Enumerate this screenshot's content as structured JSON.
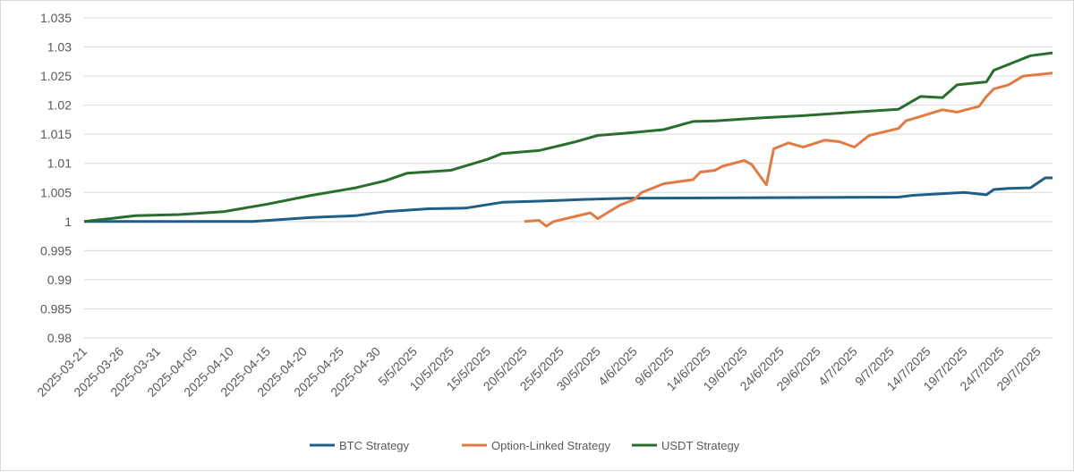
{
  "chart_data": {
    "type": "line",
    "title": "",
    "xlabel": "",
    "ylabel": "",
    "ylim": [
      0.98,
      1.035
    ],
    "y_ticks": [
      "0.98",
      "0.985",
      "0.99",
      "0.995",
      "1",
      "1.005",
      "1.01",
      "1.015",
      "1.02",
      "1.025",
      "1.03",
      "1.035"
    ],
    "x_range": [
      "2025-03-21",
      "2025-07-31"
    ],
    "x_tick_dates": [
      "2025-03-21",
      "2025-03-26",
      "2025-03-31",
      "2025-04-05",
      "2025-04-10",
      "2025-04-15",
      "2025-04-20",
      "2025-04-25",
      "2025-04-30",
      "2025-05-05",
      "2025-05-10",
      "2025-05-15",
      "2025-05-20",
      "2025-05-25",
      "2025-05-30",
      "2025-06-04",
      "2025-06-09",
      "2025-06-14",
      "2025-06-19",
      "2025-06-24",
      "2025-06-29",
      "2025-07-04",
      "2025-07-09",
      "2025-07-14",
      "2025-07-19",
      "2025-07-24",
      "2025-07-29"
    ],
    "x_tick_labels": [
      "2025-03-21",
      "2025-03-26",
      "2025-03-31",
      "2025-04-05",
      "2025-04-10",
      "2025-04-15",
      "2025-04-20",
      "2025-04-25",
      "2025-04-30",
      "5/5/2025",
      "10/5/2025",
      "15/5/2025",
      "20/5/2025",
      "25/5/2025",
      "30/5/2025",
      "4/6/2025",
      "9/6/2025",
      "14/6/2025",
      "19/6/2025",
      "24/6/2025",
      "29/6/2025",
      "4/7/2025",
      "9/7/2025",
      "14/7/2025",
      "19/7/2025",
      "24/7/2025",
      "29/7/2025"
    ],
    "grid": "horizontal",
    "legend_position": "bottom",
    "series": [
      {
        "name": "BTC Strategy",
        "color": "#1f5f86",
        "x": [
          "2025-03-21",
          "2025-04-13",
          "2025-04-21",
          "2025-04-27",
          "2025-05-01",
          "2025-05-07",
          "2025-05-12",
          "2025-05-17",
          "2025-05-22",
          "2025-05-28",
          "2025-06-03",
          "2025-07-10",
          "2025-07-12",
          "2025-07-16",
          "2025-07-19",
          "2025-07-22",
          "2025-07-23",
          "2025-07-25",
          "2025-07-28",
          "2025-07-30",
          "2025-07-31"
        ],
        "y": [
          1.0,
          1.0,
          1.0007,
          1.001,
          1.0017,
          1.0022,
          1.0023,
          1.0033,
          1.0035,
          1.0038,
          1.004,
          1.0042,
          1.0045,
          1.0048,
          1.005,
          1.0046,
          1.0055,
          1.0057,
          1.0058,
          1.0075,
          1.0075
        ]
      },
      {
        "name": "Option-Linked Strategy",
        "color": "#e07b45",
        "x": [
          "2025-05-20",
          "2025-05-22",
          "2025-05-23",
          "2025-05-24",
          "2025-05-28",
          "2025-05-29",
          "2025-05-30",
          "2025-06-02",
          "2025-06-04",
          "2025-06-05",
          "2025-06-08",
          "2025-06-12",
          "2025-06-13",
          "2025-06-15",
          "2025-06-16",
          "2025-06-19",
          "2025-06-20",
          "2025-06-22",
          "2025-06-23",
          "2025-06-25",
          "2025-06-27",
          "2025-06-28",
          "2025-06-30",
          "2025-07-02",
          "2025-07-04",
          "2025-07-06",
          "2025-07-10",
          "2025-07-11",
          "2025-07-16",
          "2025-07-18",
          "2025-07-21",
          "2025-07-22",
          "2025-07-23",
          "2025-07-25",
          "2025-07-27",
          "2025-07-31"
        ],
        "y": [
          1.0,
          1.0002,
          0.9992,
          1.0,
          1.0012,
          1.0015,
          1.0005,
          1.0028,
          1.0038,
          1.005,
          1.0065,
          1.0072,
          1.0085,
          1.0088,
          1.0095,
          1.0105,
          1.0098,
          1.0063,
          1.0125,
          1.0135,
          1.0128,
          1.0132,
          1.014,
          1.0137,
          1.0128,
          1.0148,
          1.016,
          1.0173,
          1.0192,
          1.0188,
          1.0198,
          1.0215,
          1.0228,
          1.0235,
          1.025,
          1.0255
        ]
      },
      {
        "name": "USDT Strategy",
        "color": "#2a6e2e",
        "x": [
          "2025-03-21",
          "2025-03-28",
          "2025-04-03",
          "2025-04-09",
          "2025-04-15",
          "2025-04-21",
          "2025-04-27",
          "2025-05-01",
          "2025-05-04",
          "2025-05-10",
          "2025-05-15",
          "2025-05-17",
          "2025-05-22",
          "2025-05-27",
          "2025-05-30",
          "2025-06-03",
          "2025-06-08",
          "2025-06-12",
          "2025-06-15",
          "2025-06-21",
          "2025-06-27",
          "2025-07-04",
          "2025-07-10",
          "2025-07-13",
          "2025-07-16",
          "2025-07-18",
          "2025-07-22",
          "2025-07-23",
          "2025-07-25",
          "2025-07-28",
          "2025-07-31"
        ],
        "y": [
          1.0,
          1.001,
          1.0012,
          1.0017,
          1.003,
          1.0045,
          1.0058,
          1.007,
          1.0083,
          1.0088,
          1.0107,
          1.0117,
          1.0122,
          1.0137,
          1.0148,
          1.0152,
          1.0158,
          1.0172,
          1.0173,
          1.0178,
          1.0182,
          1.0188,
          1.0193,
          1.0215,
          1.0213,
          1.0235,
          1.024,
          1.026,
          1.027,
          1.0285,
          1.029
        ]
      }
    ]
  }
}
